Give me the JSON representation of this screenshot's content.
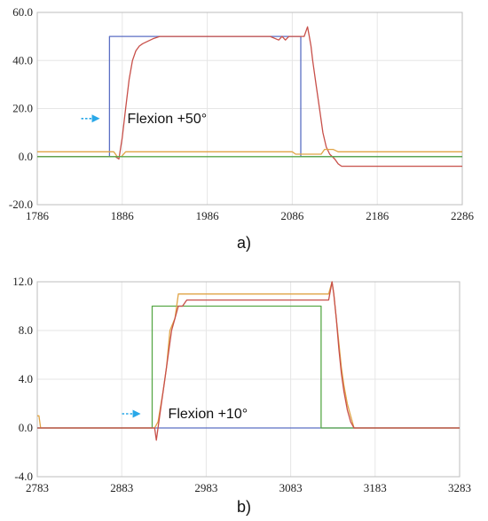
{
  "chart_data": [
    {
      "id": "a",
      "type": "line",
      "caption": "a)",
      "annotation": {
        "text": "Flexion +50°",
        "x": 1892,
        "y": 14
      },
      "xlim": [
        1786,
        2286
      ],
      "ylim": [
        -20,
        60
      ],
      "xticks": [
        1786,
        1886,
        1986,
        2086,
        2186,
        2286
      ],
      "yticks": [
        -20,
        0,
        20,
        40,
        60
      ],
      "ytick_labels": [
        "-20.0",
        "0.0",
        "20.0",
        "40.0",
        "60.0"
      ],
      "grid": true,
      "colors": {
        "accent": "#29a8e8"
      },
      "series": [
        {
          "color": "#5b6fc4",
          "x": [
            1786,
            1871,
            1871,
            2096,
            2096,
            2286
          ],
          "y": [
            0,
            0,
            50,
            50,
            0,
            0
          ]
        },
        {
          "color": "#c8504a",
          "x": [
            1786,
            1870,
            1878,
            1882,
            1886,
            1890,
            1894,
            1898,
            1902,
            1906,
            1910,
            1916,
            1922,
            1930,
            1940,
            1960,
            1990,
            2030,
            2060,
            2070,
            2074,
            2078,
            2082,
            2086,
            2090,
            2094,
            2100,
            2102,
            2104,
            2106,
            2108,
            2110,
            2114,
            2118,
            2122,
            2126,
            2130,
            2136,
            2140,
            2144,
            2150,
            2286
          ],
          "y": [
            0,
            0,
            0,
            -1,
            8,
            20,
            32,
            40,
            44,
            46,
            47,
            48,
            49,
            50,
            50,
            50,
            50,
            50,
            50,
            48.5,
            50,
            48.5,
            50,
            50,
            50,
            50,
            50,
            52,
            54,
            50,
            46,
            40,
            30,
            20,
            10,
            4,
            1,
            -1,
            -3,
            -4,
            -4,
            -4
          ]
        },
        {
          "color": "#e0a445",
          "x": [
            1786,
            1876,
            1880,
            1885,
            1890,
            1900,
            2086,
            2090,
            2120,
            2124,
            2134,
            2140,
            2286
          ],
          "y": [
            2,
            2,
            0,
            0,
            2,
            2,
            2,
            1,
            1,
            3,
            3,
            2,
            2
          ]
        },
        {
          "color": "#58a848",
          "x": [
            1786,
            2286
          ],
          "y": [
            0,
            0
          ]
        }
      ]
    },
    {
      "id": "b",
      "type": "line",
      "caption": "b)",
      "annotation": {
        "text": "Flexion +10°",
        "x": 2938,
        "y": 0.8
      },
      "xlim": [
        2783,
        3283
      ],
      "ylim": [
        -4,
        12
      ],
      "xticks": [
        2783,
        2883,
        2983,
        3083,
        3183,
        3283
      ],
      "yticks": [
        -4,
        0,
        4,
        8,
        12
      ],
      "ytick_labels": [
        "-4.0",
        "0.0",
        "4.0",
        "8.0",
        "12.0"
      ],
      "grid": true,
      "colors": {
        "accent": "#29a8e8"
      },
      "series": [
        {
          "color": "#5b6fc4",
          "x": [
            2783,
            3283
          ],
          "y": [
            0,
            0
          ]
        },
        {
          "color": "#58a848",
          "x": [
            2783,
            2919,
            2919,
            3119,
            3119,
            3283
          ],
          "y": [
            0,
            0,
            10,
            10,
            0,
            0
          ]
        },
        {
          "color": "#e0a445",
          "x": [
            2783,
            2785,
            2787,
            2922,
            2926,
            2932,
            2936,
            2940,
            2946,
            2950,
            2955,
            3128,
            3132,
            3134,
            3137,
            3140,
            3143,
            3146,
            3150,
            3154,
            3158,
            3283
          ],
          "y": [
            1,
            1,
            0,
            0,
            0.5,
            3,
            5,
            8,
            9,
            11,
            11,
            11,
            12,
            11,
            9,
            7,
            5,
            3.5,
            2,
            1,
            0,
            0
          ]
        },
        {
          "color": "#c8504a",
          "x": [
            2783,
            2922,
            2924,
            2926,
            2930,
            2934,
            2938,
            2942,
            2946,
            2950,
            2955,
            2960,
            3128,
            3132,
            3134,
            3137,
            3140,
            3143,
            3146,
            3150,
            3154,
            3158,
            3283
          ],
          "y": [
            0,
            0,
            -1,
            0,
            2,
            4,
            6,
            8,
            9,
            10,
            10,
            10.5,
            10.5,
            12,
            11,
            9,
            6.5,
            4.5,
            3,
            1.5,
            0.5,
            0,
            0
          ]
        }
      ]
    }
  ]
}
